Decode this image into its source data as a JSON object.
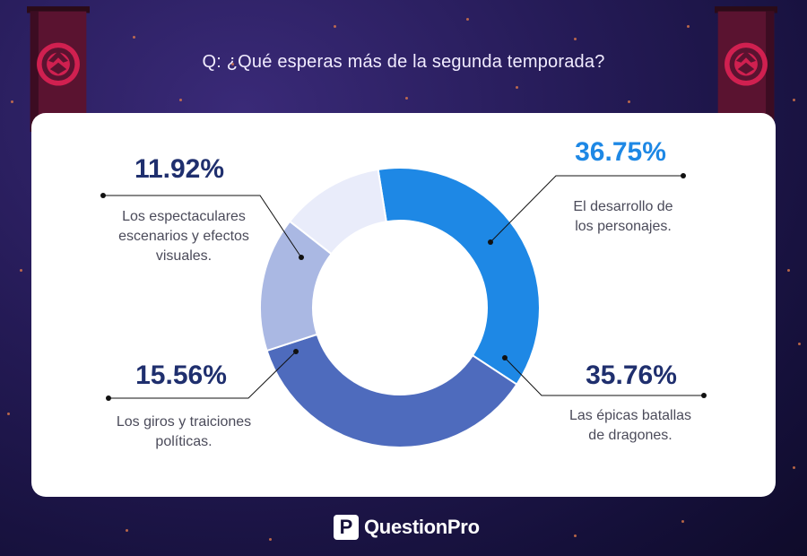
{
  "question": "Q: ¿Qué esperas más de la segunda temporada?",
  "brand": "QuestionPro",
  "brand_mark": "P",
  "colors": {
    "slice_personajes": "#1e88e5",
    "slice_batallas": "#4e6bbd",
    "slice_giros": "#aab8e3",
    "slice_escenarios": "#e9ecfa",
    "pct_blue": "#1e88e5",
    "pct_navy": "#1f2f6e",
    "banner_fabric": "#5a1330",
    "sigil": "#d02050"
  },
  "icons": [
    "dragon-sigil-icon",
    "questionpro-logo-icon"
  ],
  "chart_data": {
    "type": "pie",
    "style": "donut",
    "title": "Q: ¿Qué esperas más de la segunda temporada?",
    "categories": [
      "El desarrollo de los personajes.",
      "Las épicas batallas de dragones.",
      "Los giros y traiciones políticas.",
      "Los espectaculares escenarios y efectos visuales."
    ],
    "values": [
      36.75,
      35.76,
      15.56,
      11.92
    ],
    "labels": [
      "36.75%",
      "35.76%",
      "15.56%",
      "11.92%"
    ],
    "legend": "none",
    "grid": false
  },
  "callouts": [
    {
      "pct": "36.75%",
      "line1": "El desarrollo de",
      "line2": "los personajes.",
      "line3": ""
    },
    {
      "pct": "35.76%",
      "line1": "Las épicas batallas",
      "line2": "de dragones.",
      "line3": ""
    },
    {
      "pct": "15.56%",
      "line1": "Los giros y traiciones",
      "line2": "políticas.",
      "line3": ""
    },
    {
      "pct": "11.92%",
      "line1": "Los espectaculares",
      "line2": "escenarios y efectos",
      "line3": "visuales."
    }
  ]
}
